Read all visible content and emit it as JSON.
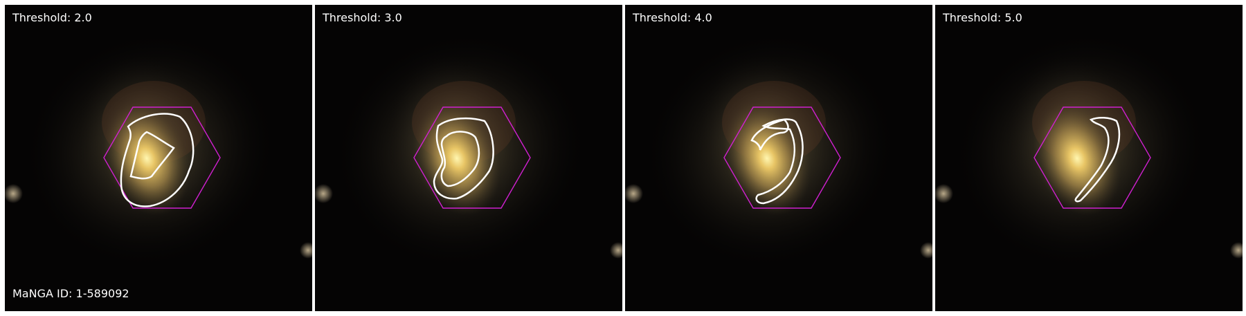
{
  "panels": [
    {
      "threshold_label": "Threshold: 2.0"
    },
    {
      "threshold_label": "Threshold: 3.0"
    },
    {
      "threshold_label": "Threshold: 4.0"
    },
    {
      "threshold_label": "Threshold: 5.0"
    }
  ],
  "galaxy_id_label": "MaNGA ID: 1-589092",
  "colors": {
    "background": "#ffffff",
    "sky": "#050404",
    "galaxy_core": "#fff2a0",
    "hexagon": "#d020d0",
    "contour": "#ffffff",
    "label_text": "#ffffff"
  }
}
